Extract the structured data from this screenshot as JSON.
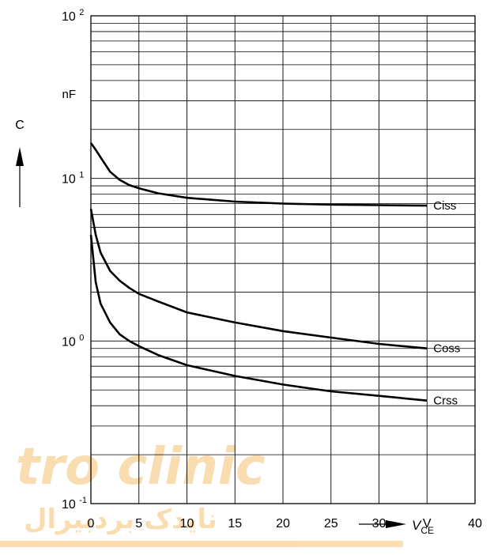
{
  "chart_data": {
    "type": "line",
    "title": "",
    "xlabel": "V",
    "xlabel_subscript": "CE",
    "xunit": "V",
    "ylabel": "C",
    "yunit": "nF",
    "xlim": [
      0,
      40
    ],
    "ylim": [
      0.1,
      100
    ],
    "yscale": "log",
    "grid": true,
    "x_ticks": [
      "0",
      "5",
      "10",
      "15",
      "20",
      "25",
      "30",
      "V",
      "40"
    ],
    "y_ticks": [
      {
        "base": "10",
        "exp": "-1",
        "value": 0.1
      },
      {
        "base": "10",
        "exp": "0",
        "value": 1
      },
      {
        "base": "10",
        "exp": "1",
        "value": 10
      },
      {
        "base": "10",
        "exp": "2",
        "value": 100
      }
    ],
    "series": [
      {
        "name": "Ciss",
        "x": [
          0,
          0.5,
          1,
          2,
          3,
          4,
          5,
          7,
          10,
          15,
          20,
          25,
          30,
          35
        ],
        "y": [
          16.5,
          15,
          13.5,
          11,
          9.8,
          9.1,
          8.7,
          8.1,
          7.6,
          7.2,
          7.0,
          6.9,
          6.85,
          6.8
        ]
      },
      {
        "name": "Coss",
        "x": [
          0,
          0.5,
          1,
          2,
          3,
          4,
          5,
          7,
          10,
          15,
          20,
          25,
          30,
          35
        ],
        "y": [
          6.5,
          4.5,
          3.5,
          2.7,
          2.35,
          2.12,
          1.95,
          1.75,
          1.5,
          1.3,
          1.15,
          1.05,
          0.96,
          0.9
        ]
      },
      {
        "name": "Crss",
        "x": [
          0,
          0.5,
          1,
          2,
          3,
          4,
          5,
          7,
          10,
          15,
          20,
          25,
          30,
          35
        ],
        "y": [
          4.5,
          2.3,
          1.7,
          1.3,
          1.1,
          1.0,
          0.93,
          0.82,
          0.71,
          0.61,
          0.54,
          0.49,
          0.46,
          0.43
        ]
      }
    ]
  },
  "watermark": {
    "line1": "tro clinic",
    "line2": "نایدک بردبیرال"
  }
}
